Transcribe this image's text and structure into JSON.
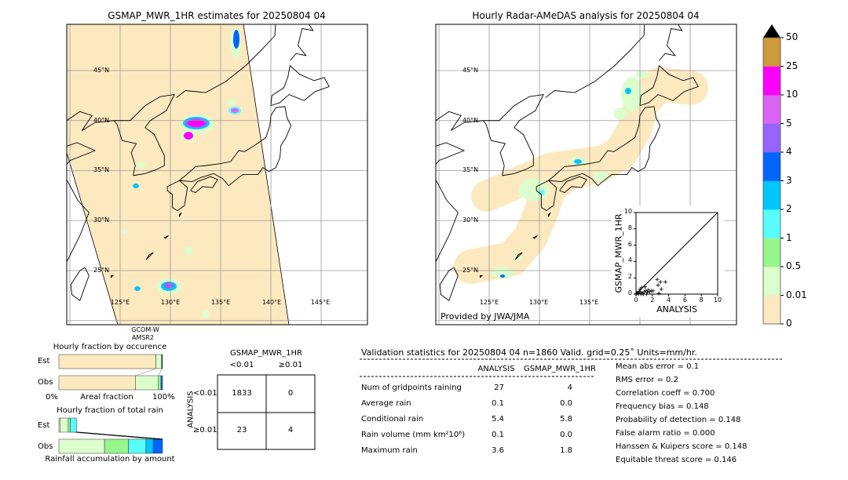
{
  "left_map": {
    "title": "GSMAP_MWR_1HR estimates for 20250804 04",
    "lat_labels": [
      "45°N",
      "40°N",
      "35°N",
      "30°N",
      "25°N"
    ],
    "lon_labels": [
      "125°E",
      "130°E",
      "135°E",
      "140°E",
      "145°E"
    ],
    "sensor_label_1": "GCOM-W",
    "sensor_label_2": "AMSR2"
  },
  "right_map": {
    "title": "Hourly Radar-AMeDAS analysis for 20250804 04",
    "lat_labels": [
      "45°N",
      "40°N",
      "35°N",
      "30°N",
      "25°N"
    ],
    "lon_labels": [
      "125°E",
      "130°E",
      "135°E"
    ],
    "credit": "Provided by JWA/JMA"
  },
  "colorbar": {
    "tick_labels": [
      "0",
      "0.01",
      "0.5",
      "1",
      "2",
      "3",
      "4",
      "5",
      "10",
      "25",
      "50"
    ],
    "colors": [
      "#fde9c0",
      "#dcfdcc",
      "#98f58c",
      "#58fdfd",
      "#00c6fd",
      "#0064fd",
      "#9664fd",
      "#dc64f5",
      "#fd00fd",
      "#cd9a3c"
    ],
    "extend_color": "#000000"
  },
  "occurrence_panel": {
    "title": "Hourly fraction by occurence",
    "row_est": "Est",
    "row_obs": "Obs",
    "x_left": "0%",
    "x_label": "Areal fraction",
    "x_right": "100%"
  },
  "rain_panel": {
    "title": "Hourly fraction of total rain",
    "row_est": "Est",
    "row_obs": "Obs",
    "x_label": "Rainfall accumulation by amount"
  },
  "contingency": {
    "col_title": "GSMAP_MWR_1HR",
    "col_labels": [
      "<0.01",
      "≥0.01"
    ],
    "row_title": "ANALYSIS",
    "row_labels": [
      "<0.01",
      "≥0.01"
    ],
    "cells": [
      [
        "1833",
        "0"
      ],
      [
        "23",
        "4"
      ]
    ]
  },
  "stats": {
    "title": "Validation statistics for 20250804 04  n=1860 Valid. grid=0.25˚ Units=mm/hr.",
    "col_headers": [
      "ANALYSIS",
      "GSMAP_MWR_1HR"
    ],
    "rows": [
      {
        "label": "Num of gridpoints raining",
        "analysis": "27",
        "gsmap": "4"
      },
      {
        "label": "Average rain",
        "analysis": "0.1",
        "gsmap": "0.0"
      },
      {
        "label": "Conditional rain",
        "analysis": "5.4",
        "gsmap": "5.8"
      },
      {
        "label": "Rain volume (mm km²10⁶)",
        "analysis": "0.1",
        "gsmap": "0.0"
      },
      {
        "label": "Maximum rain",
        "analysis": "3.6",
        "gsmap": "1.8"
      }
    ],
    "scores": [
      "Mean abs error =    0.1",
      "RMS error =    0.2",
      "Correlation coeff =  0.700",
      "Frequency bias =  0.148",
      "Probability of detection =  0.148",
      "False alarm ratio =  0.000",
      "Hanssen & Kuipers score =  0.148",
      "Equitable threat score =  0.146"
    ]
  },
  "chart_data": [
    {
      "type": "scatter",
      "xlabel": "ANALYSIS",
      "ylabel": "GSMAP_MWR_1HR",
      "xlim": [
        0,
        10
      ],
      "ylim": [
        0,
        10
      ],
      "ticks": [
        "0",
        "2",
        "4",
        "6",
        "8",
        "10"
      ],
      "diagonal": true,
      "points": [
        [
          0.1,
          0.1
        ],
        [
          0.2,
          0.2
        ],
        [
          0.3,
          0.1
        ],
        [
          0.4,
          0.3
        ],
        [
          0.5,
          0.6
        ],
        [
          0.6,
          0.2
        ],
        [
          0.7,
          0.8
        ],
        [
          0.8,
          0.1
        ],
        [
          1.0,
          0.3
        ],
        [
          1.1,
          0.9
        ],
        [
          1.2,
          0.4
        ],
        [
          1.4,
          0.2
        ],
        [
          1.5,
          0.5
        ],
        [
          1.7,
          0.3
        ],
        [
          1.9,
          0.4
        ],
        [
          2.1,
          0.4
        ],
        [
          2.6,
          1.8
        ],
        [
          2.7,
          1.1
        ],
        [
          2.8,
          0.1
        ],
        [
          3.0,
          1.5
        ],
        [
          3.1,
          0.6
        ],
        [
          3.6,
          1.5
        ],
        [
          0.3,
          0.0
        ],
        [
          0.6,
          0.0
        ],
        [
          0.9,
          0.0
        ],
        [
          1.3,
          0.0
        ]
      ]
    },
    {
      "type": "bar",
      "title": "Hourly fraction by occurence",
      "categories": [
        "Est",
        "Obs"
      ],
      "units": "fraction of area (%)",
      "series": [
        {
          "values": [
            93.6,
            74.0
          ]
        },
        {
          "values": [
            5.4,
            22.0
          ]
        },
        {
          "values": [
            0.6,
            2.5
          ]
        },
        {
          "values": [
            0.4,
            1.5
          ]
        }
      ]
    },
    {
      "type": "bar",
      "title": "Hourly fraction of total rain",
      "categories": [
        "Est",
        "Obs"
      ],
      "series": [
        {
          "values": [
            1,
            0
          ]
        },
        {
          "values": [
            8,
            44
          ]
        },
        {
          "values": [
            2,
            23
          ]
        },
        {
          "values": [
            6,
            17
          ]
        },
        {
          "values": [
            0,
            7
          ]
        },
        {
          "values": [
            0,
            9
          ]
        }
      ]
    }
  ]
}
